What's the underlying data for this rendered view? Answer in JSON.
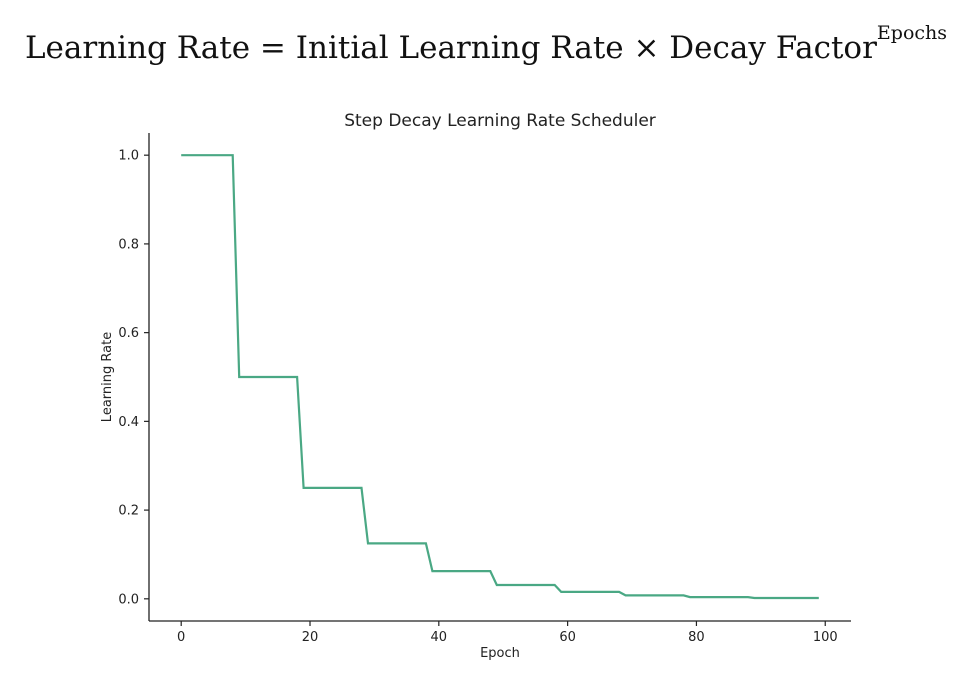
{
  "formula": {
    "main": "Learning Rate = Initial Learning Rate × Decay Factor",
    "superscript": "Epochs"
  },
  "colors": {
    "line": "#4aa884",
    "axis": "#222222",
    "background": "#ffffff"
  },
  "chart_data": {
    "type": "line",
    "title": "Step Decay Learning Rate Scheduler",
    "xlabel": "Epoch",
    "ylabel": "Learning Rate",
    "xlim": [
      -5,
      104
    ],
    "ylim": [
      -0.05,
      1.05
    ],
    "grid": false,
    "legend": "none",
    "x_ticks": [
      0,
      20,
      40,
      60,
      80,
      100
    ],
    "y_ticks": [
      0.0,
      0.2,
      0.4,
      0.6,
      0.8,
      1.0
    ],
    "x_tick_labels": [
      "0",
      "20",
      "40",
      "60",
      "80",
      "100"
    ],
    "y_tick_labels": [
      "0.0",
      "0.2",
      "0.4",
      "0.6",
      "0.8",
      "1.0"
    ],
    "series": [
      {
        "x": [
          0,
          8,
          9,
          18,
          19,
          28,
          29,
          38,
          39,
          48,
          49,
          58,
          59,
          68,
          69,
          78,
          79,
          88,
          89,
          99
        ],
        "y": [
          1.0,
          1.0,
          0.5,
          0.5,
          0.25,
          0.25,
          0.125,
          0.125,
          0.0625,
          0.0625,
          0.03125,
          0.03125,
          0.015625,
          0.015625,
          0.0078125,
          0.0078125,
          0.00390625,
          0.00390625,
          0.001953125,
          0.001953125
        ]
      }
    ]
  }
}
